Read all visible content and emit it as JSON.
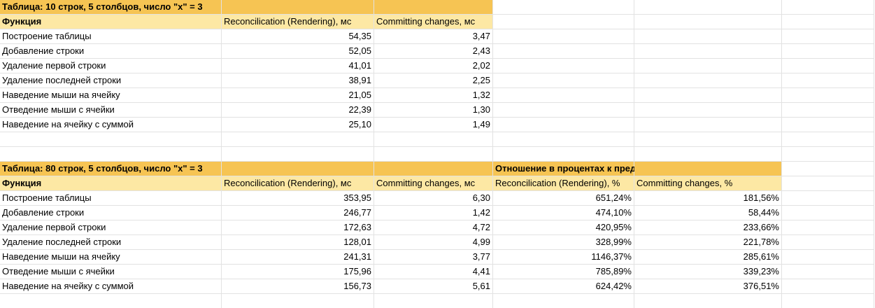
{
  "table1": {
    "title": "Таблица: 10 строк, 5 столбцов, число \"x\" = 3",
    "headers": [
      "Функция",
      "Reconcilication (Rendering), мс",
      "Committing changes, мс"
    ],
    "rows": [
      [
        "Построение таблицы",
        "54,35",
        "3,47"
      ],
      [
        "Добавление строки",
        "52,05",
        "2,43"
      ],
      [
        "Удаление первой строки",
        "41,01",
        "2,02"
      ],
      [
        "Удаление последней строки",
        "38,91",
        "2,25"
      ],
      [
        "Наведение мыши на ячейку",
        "21,05",
        "1,32"
      ],
      [
        "Отведение мыши с ячейки",
        "22,39",
        "1,30"
      ],
      [
        "Наведение на ячейку с суммой",
        "25,10",
        "1,49"
      ]
    ]
  },
  "table2": {
    "title": "Таблица: 80 строк, 5 столбцов, число \"x\" = 3",
    "ratio_title": "Отношение в процентах к предыдущим измерениям",
    "headers": [
      "Функция",
      "Reconcilication (Rendering), мс",
      "Committing changes, мс",
      "Reconcilication (Rendering), %",
      "Committing changes, %"
    ],
    "rows": [
      [
        "Построение таблицы",
        "353,95",
        "6,30",
        "651,24%",
        "181,56%"
      ],
      [
        "Добавление строки",
        "246,77",
        "1,42",
        "474,10%",
        "58,44%"
      ],
      [
        "Удаление первой строки",
        "172,63",
        "4,72",
        "420,95%",
        "233,66%"
      ],
      [
        "Удаление последней строки",
        "128,01",
        "4,99",
        "328,99%",
        "221,78%"
      ],
      [
        "Наведение мыши на ячейку",
        "241,31",
        "3,77",
        "1146,37%",
        "285,61%"
      ],
      [
        "Отведение мыши с ячейки",
        "175,96",
        "4,41",
        "785,89%",
        "339,23%"
      ],
      [
        "Наведение на ячейку с суммой",
        "156,73",
        "5,61",
        "624,42%",
        "376,51%"
      ]
    ]
  },
  "colors": {
    "title_fill": "#f6c453",
    "header_fill": "#fde8a4",
    "gridline": "#e2e2e2"
  }
}
